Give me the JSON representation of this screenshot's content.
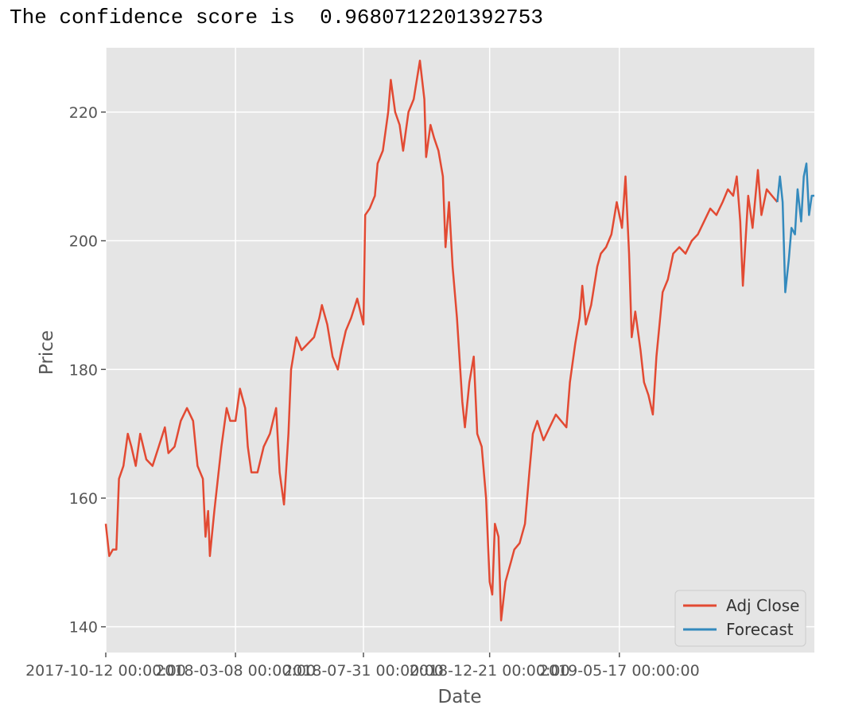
{
  "output": {
    "prefix": "The confidence score is ",
    "confidence": "0.9680712201392753"
  },
  "colors": {
    "plot_background": "#e5e5e5",
    "grid": "#ffffff",
    "adj_close": "#e24a33",
    "forecast": "#348abd"
  },
  "chart_data": {
    "type": "line",
    "xlabel": "Date",
    "ylabel": "Price",
    "x_range": [
      "2017-10-12",
      "2019-12-24"
    ],
    "ylim": [
      136,
      230
    ],
    "grid": true,
    "legend_position": "bottom-right",
    "x_ticks": [
      {
        "date": "2017-10-12",
        "label": "2017-10-12 00:00:00"
      },
      {
        "date": "2018-03-08",
        "label": "2018-03-08 00:00:00"
      },
      {
        "date": "2018-07-31",
        "label": "2018-07-31 00:00:00"
      },
      {
        "date": "2018-12-21",
        "label": "2018-12-21 00:00:00"
      },
      {
        "date": "2019-05-17",
        "label": "2019-05-17 00:00:00"
      }
    ],
    "y_ticks": [
      {
        "value": 140,
        "label": "140"
      },
      {
        "value": 160,
        "label": "160"
      },
      {
        "value": 180,
        "label": "180"
      },
      {
        "value": 200,
        "label": "200"
      },
      {
        "value": 220,
        "label": "220"
      }
    ],
    "series": [
      {
        "name": "Adj Close",
        "points": [
          [
            "2017-10-12",
            156
          ],
          [
            "2017-10-16",
            151
          ],
          [
            "2017-10-20",
            152
          ],
          [
            "2017-10-24",
            152
          ],
          [
            "2017-10-27",
            163
          ],
          [
            "2017-11-01",
            165
          ],
          [
            "2017-11-06",
            170
          ],
          [
            "2017-11-10",
            168
          ],
          [
            "2017-11-15",
            165
          ],
          [
            "2017-11-20",
            170
          ],
          [
            "2017-11-27",
            166
          ],
          [
            "2017-12-04",
            165
          ],
          [
            "2017-12-11",
            168
          ],
          [
            "2017-12-18",
            171
          ],
          [
            "2017-12-22",
            167
          ],
          [
            "2017-12-29",
            168
          ],
          [
            "2018-01-05",
            172
          ],
          [
            "2018-01-12",
            174
          ],
          [
            "2018-01-19",
            172
          ],
          [
            "2018-01-24",
            165
          ],
          [
            "2018-01-30",
            163
          ],
          [
            "2018-02-02",
            154
          ],
          [
            "2018-02-05",
            158
          ],
          [
            "2018-02-07",
            151
          ],
          [
            "2018-02-12",
            158
          ],
          [
            "2018-02-20",
            168
          ],
          [
            "2018-02-26",
            174
          ],
          [
            "2018-03-02",
            172
          ],
          [
            "2018-03-08",
            172
          ],
          [
            "2018-03-13",
            177
          ],
          [
            "2018-03-19",
            174
          ],
          [
            "2018-03-22",
            168
          ],
          [
            "2018-03-26",
            164
          ],
          [
            "2018-04-02",
            164
          ],
          [
            "2018-04-09",
            168
          ],
          [
            "2018-04-16",
            170
          ],
          [
            "2018-04-23",
            174
          ],
          [
            "2018-04-27",
            164
          ],
          [
            "2018-05-02",
            159
          ],
          [
            "2018-05-07",
            170
          ],
          [
            "2018-05-10",
            180
          ],
          [
            "2018-05-16",
            185
          ],
          [
            "2018-05-22",
            183
          ],
          [
            "2018-05-29",
            184
          ],
          [
            "2018-06-05",
            185
          ],
          [
            "2018-06-11",
            188
          ],
          [
            "2018-06-14",
            190
          ],
          [
            "2018-06-20",
            187
          ],
          [
            "2018-06-26",
            182
          ],
          [
            "2018-07-02",
            180
          ],
          [
            "2018-07-06",
            183
          ],
          [
            "2018-07-11",
            186
          ],
          [
            "2018-07-17",
            188
          ],
          [
            "2018-07-24",
            191
          ],
          [
            "2018-07-31",
            187
          ],
          [
            "2018-08-02",
            204
          ],
          [
            "2018-08-07",
            205
          ],
          [
            "2018-08-13",
            207
          ],
          [
            "2018-08-16",
            212
          ],
          [
            "2018-08-22",
            214
          ],
          [
            "2018-08-28",
            220
          ],
          [
            "2018-08-31",
            225
          ],
          [
            "2018-09-05",
            220
          ],
          [
            "2018-09-10",
            218
          ],
          [
            "2018-09-14",
            214
          ],
          [
            "2018-09-20",
            220
          ],
          [
            "2018-09-26",
            222
          ],
          [
            "2018-10-03",
            228
          ],
          [
            "2018-10-08",
            222
          ],
          [
            "2018-10-10",
            213
          ],
          [
            "2018-10-15",
            218
          ],
          [
            "2018-10-19",
            216
          ],
          [
            "2018-10-24",
            214
          ],
          [
            "2018-10-29",
            210
          ],
          [
            "2018-11-01",
            199
          ],
          [
            "2018-11-05",
            206
          ],
          [
            "2018-11-09",
            196
          ],
          [
            "2018-11-14",
            188
          ],
          [
            "2018-11-20",
            175
          ],
          [
            "2018-11-23",
            171
          ],
          [
            "2018-11-28",
            178
          ],
          [
            "2018-12-03",
            182
          ],
          [
            "2018-12-07",
            170
          ],
          [
            "2018-12-12",
            168
          ],
          [
            "2018-12-17",
            160
          ],
          [
            "2018-12-21",
            147
          ],
          [
            "2018-12-24",
            145
          ],
          [
            "2018-12-27",
            156
          ],
          [
            "2018-12-31",
            154
          ],
          [
            "2019-01-03",
            141
          ],
          [
            "2019-01-08",
            147
          ],
          [
            "2019-01-14",
            150
          ],
          [
            "2019-01-18",
            152
          ],
          [
            "2019-01-24",
            153
          ],
          [
            "2019-01-30",
            156
          ],
          [
            "2019-02-04",
            164
          ],
          [
            "2019-02-08",
            170
          ],
          [
            "2019-02-13",
            172
          ],
          [
            "2019-02-20",
            169
          ],
          [
            "2019-02-27",
            171
          ],
          [
            "2019-03-06",
            173
          ],
          [
            "2019-03-12",
            172
          ],
          [
            "2019-03-18",
            171
          ],
          [
            "2019-03-22",
            178
          ],
          [
            "2019-03-28",
            184
          ],
          [
            "2019-04-02",
            188
          ],
          [
            "2019-04-05",
            193
          ],
          [
            "2019-04-09",
            187
          ],
          [
            "2019-04-15",
            190
          ],
          [
            "2019-04-22",
            196
          ],
          [
            "2019-04-26",
            198
          ],
          [
            "2019-05-02",
            199
          ],
          [
            "2019-05-08",
            201
          ],
          [
            "2019-05-14",
            206
          ],
          [
            "2019-05-20",
            202
          ],
          [
            "2019-05-24",
            210
          ],
          [
            "2019-05-28",
            198
          ],
          [
            "2019-05-31",
            185
          ],
          [
            "2019-06-04",
            189
          ],
          [
            "2019-06-10",
            183
          ],
          [
            "2019-06-14",
            178
          ],
          [
            "2019-06-19",
            176
          ],
          [
            "2019-06-24",
            173
          ],
          [
            "2019-06-28",
            182
          ],
          [
            "2019-07-05",
            192
          ],
          [
            "2019-07-11",
            194
          ],
          [
            "2019-07-17",
            198
          ],
          [
            "2019-07-24",
            199
          ],
          [
            "2019-07-31",
            198
          ],
          [
            "2019-08-07",
            200
          ],
          [
            "2019-08-14",
            201
          ],
          [
            "2019-08-21",
            203
          ],
          [
            "2019-08-28",
            205
          ],
          [
            "2019-09-04",
            204
          ],
          [
            "2019-09-11",
            206
          ],
          [
            "2019-09-17",
            208
          ],
          [
            "2019-09-23",
            207
          ],
          [
            "2019-09-27",
            210
          ],
          [
            "2019-10-01",
            203
          ],
          [
            "2019-10-04",
            193
          ],
          [
            "2019-10-10",
            207
          ],
          [
            "2019-10-15",
            202
          ],
          [
            "2019-10-21",
            211
          ],
          [
            "2019-10-25",
            204
          ],
          [
            "2019-10-31",
            208
          ],
          [
            "2019-11-06",
            207
          ],
          [
            "2019-11-12",
            206
          ]
        ]
      },
      {
        "name": "Forecast",
        "points": [
          [
            "2019-11-12",
            206
          ],
          [
            "2019-11-15",
            210
          ],
          [
            "2019-11-18",
            206
          ],
          [
            "2019-11-21",
            192
          ],
          [
            "2019-11-25",
            197
          ],
          [
            "2019-11-28",
            202
          ],
          [
            "2019-12-02",
            201
          ],
          [
            "2019-12-05",
            208
          ],
          [
            "2019-12-09",
            203
          ],
          [
            "2019-12-12",
            210
          ],
          [
            "2019-12-15",
            212
          ],
          [
            "2019-12-18",
            204
          ],
          [
            "2019-12-21",
            207
          ],
          [
            "2019-12-24",
            207
          ]
        ]
      }
    ]
  }
}
